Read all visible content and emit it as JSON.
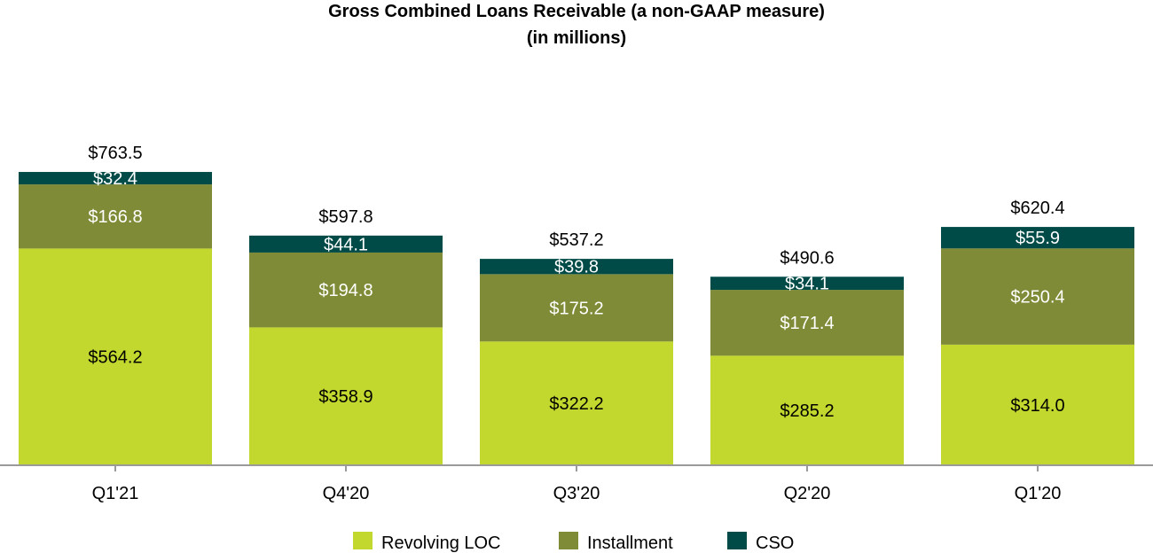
{
  "chart_data": {
    "type": "bar",
    "stacked": true,
    "title": "Gross Combined Loans Receivable (a non-GAAP measure)",
    "subtitle": "(in millions)",
    "categories": [
      "Q1'21",
      "Q4'20",
      "Q3'20",
      "Q2'20",
      "Q1'20"
    ],
    "series": [
      {
        "name": "Revolving LOC",
        "color": "#c3d82e",
        "label_color": "#000000",
        "values": [
          564.2,
          358.9,
          322.2,
          285.2,
          314.0
        ],
        "labels": [
          "$564.2",
          "$358.9",
          "$322.2",
          "$285.2",
          "$314.0"
        ]
      },
      {
        "name": "Installment",
        "color": "#7f8b36",
        "label_color": "#ffffff",
        "values": [
          166.8,
          194.8,
          175.2,
          171.4,
          250.4
        ],
        "labels": [
          "$166.8",
          "$194.8",
          "$175.2",
          "$171.4",
          "$250.4"
        ]
      },
      {
        "name": "CSO",
        "color": "#004b47",
        "label_color": "#ffffff",
        "values": [
          32.4,
          44.1,
          39.8,
          34.1,
          55.9
        ],
        "labels": [
          "$32.4",
          "$44.1",
          "$39.8",
          "$34.1",
          "$55.9"
        ]
      }
    ],
    "totals": [
      763.5,
      597.8,
      537.2,
      490.6,
      620.4
    ],
    "total_labels": [
      "$763.5",
      "$597.8",
      "$537.2",
      "$490.6",
      "$620.4"
    ],
    "ylim": [
      0,
      763.5
    ],
    "xlabel": "",
    "ylabel": "",
    "grid": false,
    "legend": "bottom"
  }
}
